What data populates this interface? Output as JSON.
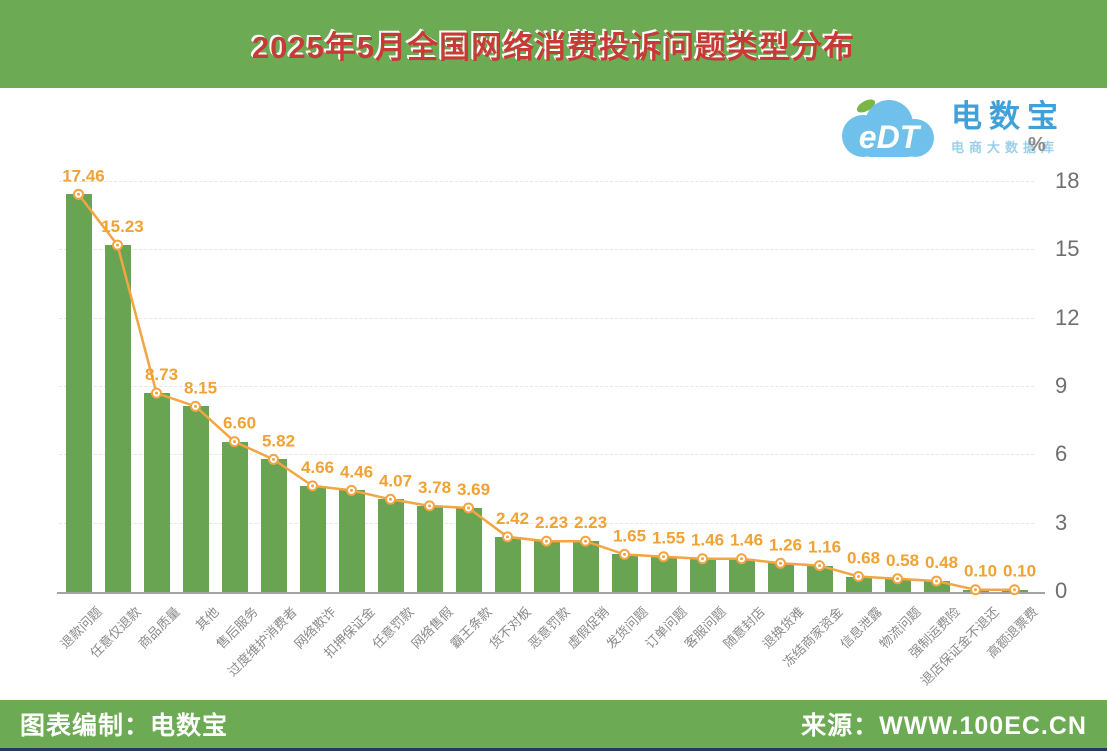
{
  "title": "2025年5月全国网络消费投诉问题类型分布",
  "logo": {
    "mark": "eDT",
    "brand": "电数宝",
    "subtitle": "电商大数据库"
  },
  "chart_data": {
    "type": "bar",
    "overlay": "line",
    "title": "2025年5月全国网络消费投诉问题类型分布",
    "unit": "%",
    "ylim": [
      0,
      18
    ],
    "yticks": [
      0,
      3,
      6,
      9,
      12,
      15,
      18
    ],
    "grid": "horizontal-dashed",
    "categories": [
      "退款问题",
      "任意仅退款",
      "商品质量",
      "其他",
      "售后服务",
      "过度维护消费者",
      "网络欺诈",
      "扣押保证金",
      "任意罚款",
      "网络售假",
      "霸王条款",
      "货不对板",
      "恶意罚款",
      "虚假促销",
      "发货问题",
      "订单问题",
      "客服问题",
      "随意封店",
      "退换货难",
      "冻结商家资金",
      "信息泄露",
      "物流问题",
      "强制运费险",
      "退店保证金不退还",
      "高额退票费"
    ],
    "values": [
      17.46,
      15.23,
      8.73,
      8.15,
      6.6,
      5.82,
      4.66,
      4.46,
      4.07,
      3.78,
      3.69,
      2.42,
      2.23,
      2.23,
      1.65,
      1.55,
      1.46,
      1.46,
      1.26,
      1.16,
      0.68,
      0.58,
      0.48,
      0.1,
      0.1
    ],
    "colors": {
      "bar": "#68a452",
      "line": "#f2a542",
      "marker_fill": "#ffffff",
      "value_label": "#f1a233",
      "header_green": "#6cab53",
      "title_red": "#c43c35"
    }
  },
  "footer": {
    "left": "图表编制：电数宝",
    "right": "来源：WWW.100EC.CN"
  }
}
